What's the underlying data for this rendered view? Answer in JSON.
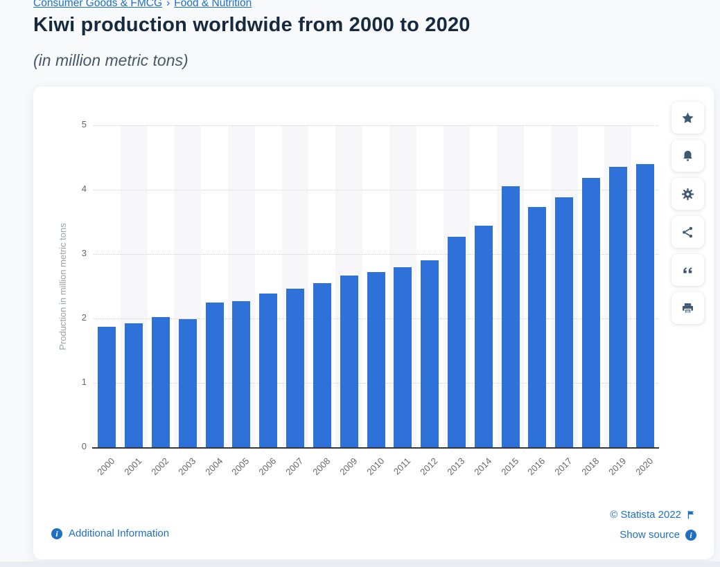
{
  "breadcrumb": {
    "items": [
      "Consumer Goods & FMCG",
      "Food & Nutrition"
    ],
    "separator": "›"
  },
  "header": {
    "title": "Kiwi production worldwide from 2000 to 2020",
    "subtitle": "(in million metric tons)"
  },
  "chart_data": {
    "type": "bar",
    "title": "Kiwi production worldwide from 2000 to 2020",
    "subtitle": "(in million metric tons)",
    "categories": [
      "2000",
      "2001",
      "2002",
      "2003",
      "2004",
      "2005",
      "2006",
      "2007",
      "2008",
      "2009",
      "2010",
      "2011",
      "2012",
      "2013",
      "2014",
      "2015",
      "2016",
      "2017",
      "2018",
      "2019",
      "2020"
    ],
    "values": [
      1.87,
      1.93,
      2.02,
      1.99,
      2.25,
      2.27,
      2.39,
      2.46,
      2.55,
      2.67,
      2.72,
      2.8,
      2.9,
      3.27,
      3.44,
      4.05,
      3.73,
      3.88,
      4.18,
      4.35,
      4.4
    ],
    "xlabel": "",
    "ylabel": "Production in million metric tons",
    "ylim": [
      0,
      5
    ],
    "yticks": [
      0,
      1,
      2,
      3,
      4,
      5
    ],
    "grid": "horizontal-dotted",
    "legend": "none",
    "bar_color": "#2e71d8",
    "stripe_color": "#f7f7f9"
  },
  "toolbar": {
    "icons": [
      "star-icon",
      "bell-icon",
      "gear-icon",
      "share-icon",
      "quote-icon",
      "printer-icon"
    ]
  },
  "footer": {
    "additional_information": "Additional Information",
    "copyright": "© Statista 2022",
    "show_source": "Show source"
  },
  "colors": {
    "link_blue": "#1d70c4",
    "title_navy": "#15293f",
    "subtitle_gray_blue": "#48586c",
    "bar_blue": "#2e71d8",
    "toolbar_icon_navy": "#3e5872",
    "axis_text_gray": "#666666",
    "page_background": "#f8f9fb"
  }
}
